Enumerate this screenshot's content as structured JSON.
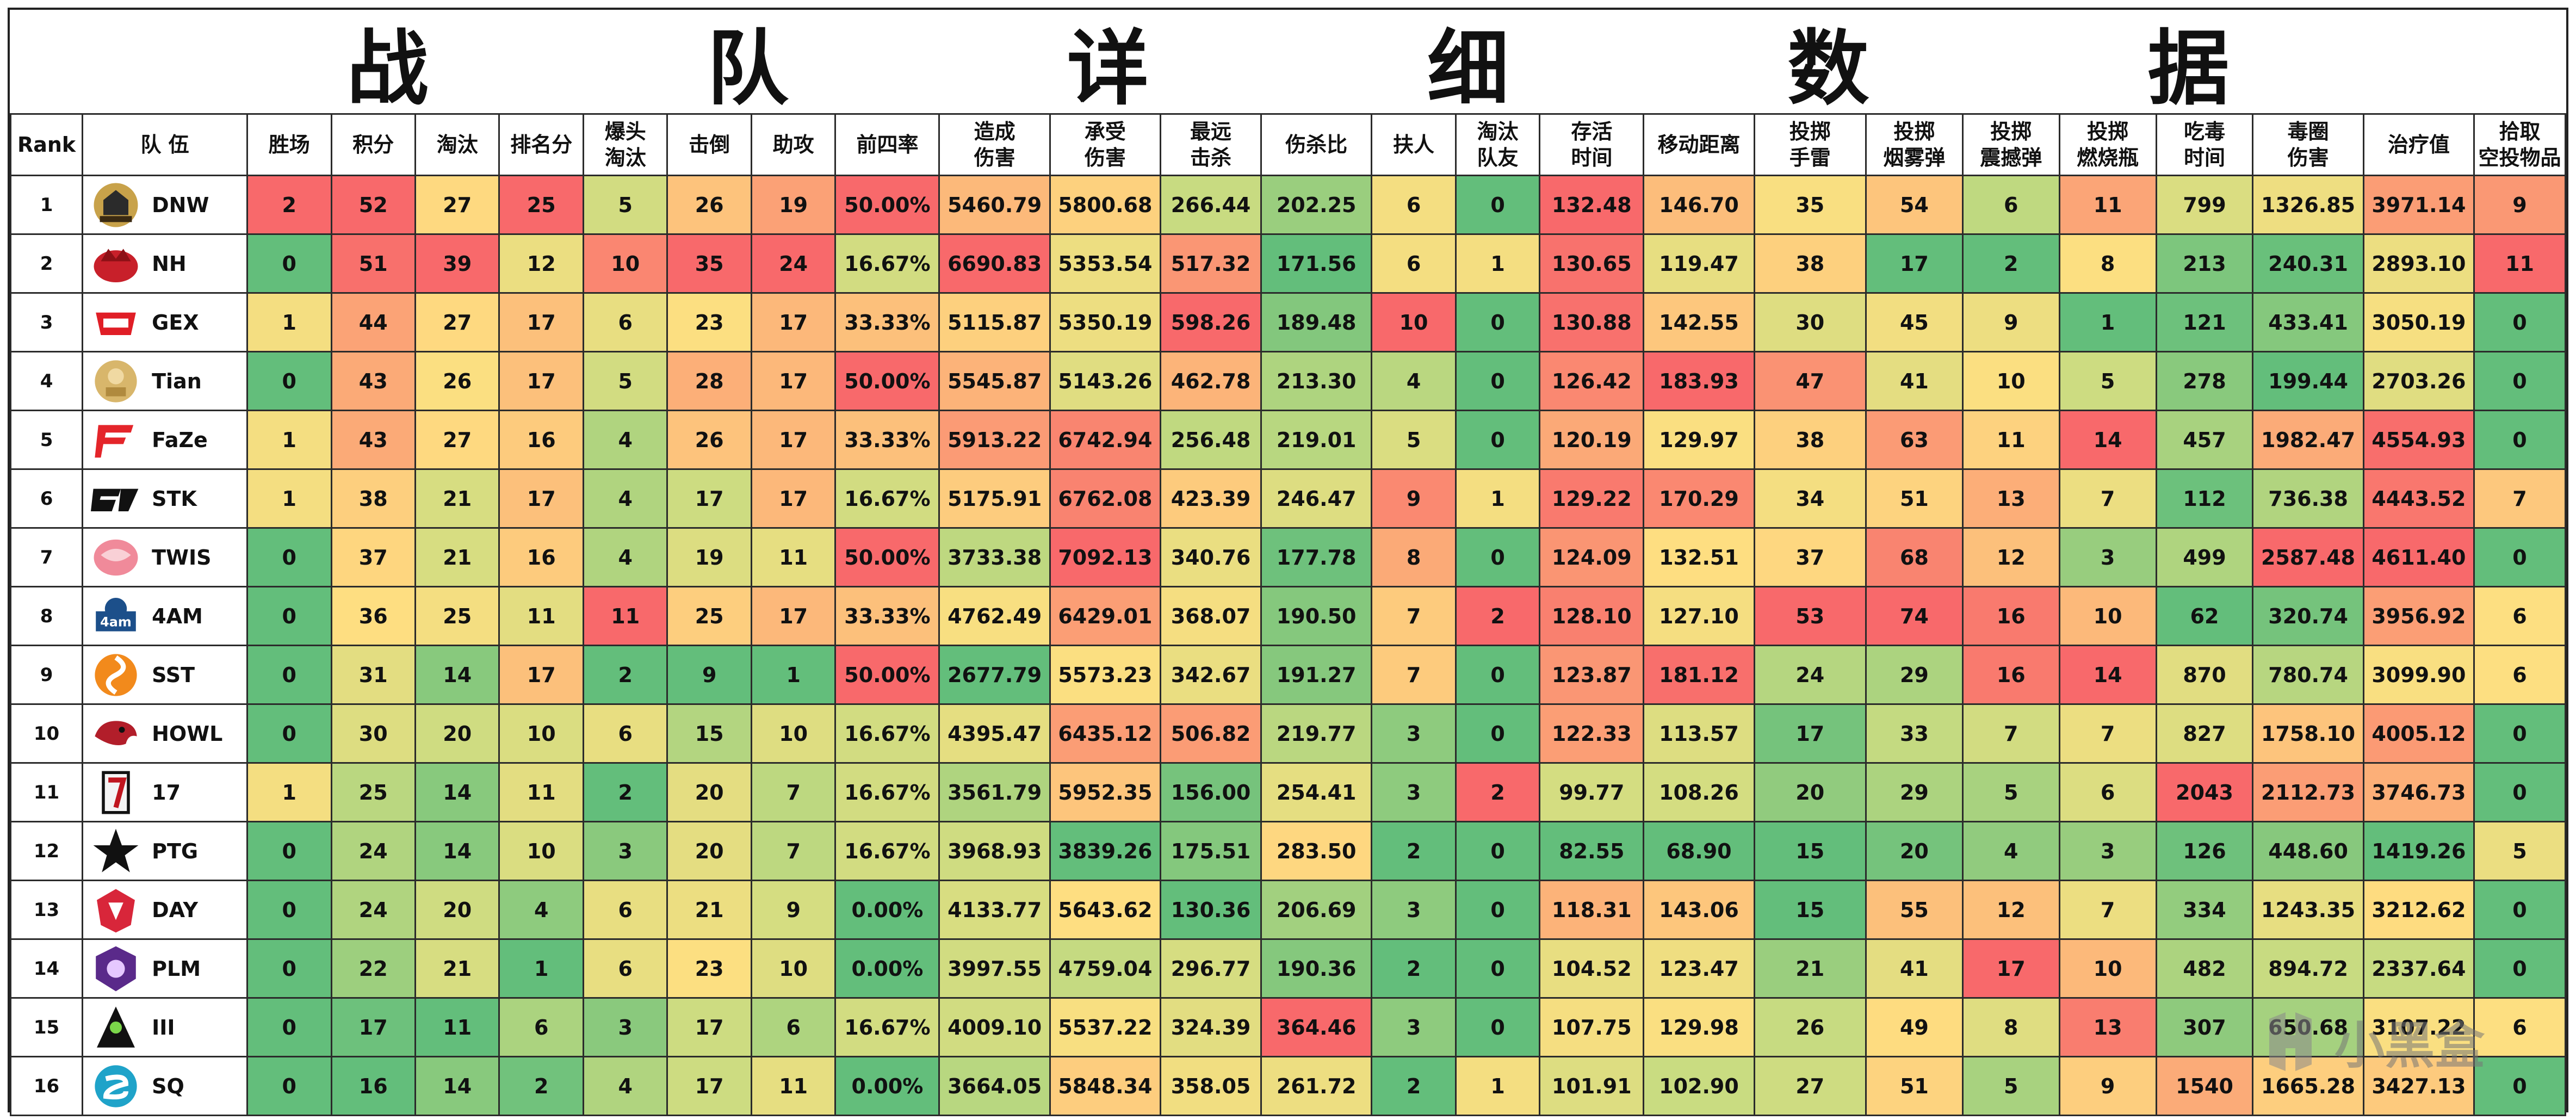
{
  "title": "战 队 详 细 数 据",
  "columns": [
    "Rank",
    "队 伍",
    "胜场",
    "积分",
    "淘汰",
    "排名分",
    "爆头\n淘汰",
    "击倒",
    "助攻",
    "前四率",
    "造成\n伤害",
    "承受\n伤害",
    "最远\n击杀",
    "伤杀比",
    "扶人",
    "淘汰\n队友",
    "存活\n时间",
    "移动距离",
    "投掷\n手雷",
    "投掷\n烟雾弹",
    "投掷\n震撼弹",
    "投掷\n燃烧瓶",
    "吃毒\n时间",
    "毒圈\n伤害",
    "治疗值",
    "拾取\n空投物品"
  ],
  "rows": [
    {
      "rank": "1",
      "team": "DNW",
      "logo": "danawa-logo",
      "values": [
        "2",
        "52",
        "27",
        "25",
        "5",
        "26",
        "19",
        "50.00%",
        "5460.79",
        "5800.68",
        "266.44",
        "202.25",
        "6",
        "0",
        "132.48",
        "146.70",
        "35",
        "54",
        "6",
        "11",
        "799",
        "1326.85",
        "3971.14",
        "9"
      ]
    },
    {
      "rank": "2",
      "team": "NH",
      "logo": "nh-logo",
      "values": [
        "0",
        "51",
        "39",
        "12",
        "10",
        "35",
        "24",
        "16.67%",
        "6690.83",
        "5353.54",
        "517.32",
        "171.56",
        "6",
        "1",
        "130.65",
        "119.47",
        "38",
        "17",
        "2",
        "8",
        "213",
        "240.31",
        "2893.10",
        "11"
      ]
    },
    {
      "rank": "3",
      "team": "GEX",
      "logo": "gex-logo",
      "values": [
        "1",
        "44",
        "27",
        "17",
        "6",
        "23",
        "17",
        "33.33%",
        "5115.87",
        "5350.19",
        "598.26",
        "189.48",
        "10",
        "0",
        "130.88",
        "142.55",
        "30",
        "45",
        "9",
        "1",
        "121",
        "433.41",
        "3050.19",
        "0"
      ]
    },
    {
      "rank": "4",
      "team": "Tian",
      "logo": "tian-logo",
      "values": [
        "0",
        "43",
        "26",
        "17",
        "5",
        "28",
        "17",
        "50.00%",
        "5545.87",
        "5143.26",
        "462.78",
        "213.30",
        "4",
        "0",
        "126.42",
        "183.93",
        "47",
        "41",
        "10",
        "5",
        "278",
        "199.44",
        "2703.26",
        "0"
      ]
    },
    {
      "rank": "5",
      "team": "FaZe",
      "logo": "faze-logo",
      "values": [
        "1",
        "43",
        "27",
        "16",
        "4",
        "26",
        "17",
        "33.33%",
        "5913.22",
        "6742.94",
        "256.48",
        "219.01",
        "5",
        "0",
        "120.19",
        "129.97",
        "38",
        "63",
        "11",
        "14",
        "457",
        "1982.47",
        "4554.93",
        "0"
      ]
    },
    {
      "rank": "6",
      "team": "STK",
      "logo": "stk-logo",
      "values": [
        "1",
        "38",
        "21",
        "17",
        "4",
        "17",
        "17",
        "16.67%",
        "5175.91",
        "6762.08",
        "423.39",
        "246.47",
        "9",
        "1",
        "129.22",
        "170.29",
        "34",
        "51",
        "13",
        "7",
        "112",
        "736.38",
        "4443.52",
        "7"
      ]
    },
    {
      "rank": "7",
      "team": "TWIS",
      "logo": "twis-logo",
      "values": [
        "0",
        "37",
        "21",
        "16",
        "4",
        "19",
        "11",
        "50.00%",
        "3733.38",
        "7092.13",
        "340.76",
        "177.78",
        "8",
        "0",
        "124.09",
        "132.51",
        "37",
        "68",
        "12",
        "3",
        "499",
        "2587.48",
        "4611.40",
        "0"
      ]
    },
    {
      "rank": "8",
      "team": "4AM",
      "logo": "4am-logo",
      "values": [
        "0",
        "36",
        "25",
        "11",
        "11",
        "25",
        "17",
        "33.33%",
        "4762.49",
        "6429.01",
        "368.07",
        "190.50",
        "7",
        "2",
        "128.10",
        "127.10",
        "53",
        "74",
        "16",
        "10",
        "62",
        "320.74",
        "3956.92",
        "6"
      ]
    },
    {
      "rank": "9",
      "team": "SST",
      "logo": "sst-logo",
      "values": [
        "0",
        "31",
        "14",
        "17",
        "2",
        "9",
        "1",
        "50.00%",
        "2677.79",
        "5573.23",
        "342.67",
        "191.27",
        "7",
        "0",
        "123.87",
        "181.12",
        "24",
        "29",
        "16",
        "14",
        "870",
        "780.74",
        "3099.90",
        "6"
      ]
    },
    {
      "rank": "10",
      "team": "HOWL",
      "logo": "howl-logo",
      "values": [
        "0",
        "30",
        "20",
        "10",
        "6",
        "15",
        "10",
        "16.67%",
        "4395.47",
        "6435.12",
        "506.82",
        "219.77",
        "3",
        "0",
        "122.33",
        "113.57",
        "17",
        "33",
        "7",
        "7",
        "827",
        "1758.10",
        "4005.12",
        "0"
      ]
    },
    {
      "rank": "11",
      "team": "17",
      "logo": "17-logo",
      "values": [
        "1",
        "25",
        "14",
        "11",
        "2",
        "20",
        "7",
        "16.67%",
        "3561.79",
        "5952.35",
        "156.00",
        "254.41",
        "3",
        "2",
        "99.77",
        "108.26",
        "20",
        "29",
        "5",
        "6",
        "2043",
        "2112.73",
        "3746.73",
        "0"
      ]
    },
    {
      "rank": "12",
      "team": "PTG",
      "logo": "ptg-logo",
      "values": [
        "0",
        "24",
        "14",
        "10",
        "3",
        "20",
        "7",
        "16.67%",
        "3968.93",
        "3839.26",
        "175.51",
        "283.50",
        "2",
        "0",
        "82.55",
        "68.90",
        "15",
        "20",
        "4",
        "3",
        "126",
        "448.60",
        "1419.26",
        "5"
      ]
    },
    {
      "rank": "13",
      "team": "DAY",
      "logo": "day-logo",
      "values": [
        "0",
        "24",
        "20",
        "4",
        "6",
        "21",
        "9",
        "0.00%",
        "4133.77",
        "5643.62",
        "130.36",
        "206.69",
        "3",
        "0",
        "118.31",
        "143.06",
        "15",
        "55",
        "12",
        "7",
        "334",
        "1243.35",
        "3212.62",
        "0"
      ]
    },
    {
      "rank": "14",
      "team": "PLM",
      "logo": "plm-logo",
      "values": [
        "0",
        "22",
        "21",
        "1",
        "6",
        "23",
        "10",
        "0.00%",
        "3997.55",
        "4759.04",
        "296.77",
        "190.36",
        "2",
        "0",
        "104.52",
        "123.47",
        "21",
        "41",
        "17",
        "10",
        "482",
        "894.72",
        "2337.64",
        "0"
      ]
    },
    {
      "rank": "15",
      "team": "III",
      "logo": "iii-logo",
      "values": [
        "0",
        "17",
        "11",
        "6",
        "3",
        "17",
        "6",
        "16.67%",
        "4009.10",
        "5537.22",
        "324.39",
        "364.46",
        "3",
        "0",
        "107.75",
        "129.98",
        "26",
        "49",
        "8",
        "13",
        "307",
        "650.68",
        "3107.22",
        "6"
      ]
    },
    {
      "rank": "16",
      "team": "SQ",
      "logo": "sq-logo",
      "values": [
        "0",
        "16",
        "14",
        "2",
        "4",
        "17",
        "11",
        "0.00%",
        "3664.05",
        "5848.34",
        "358.05",
        "261.72",
        "2",
        "1",
        "101.91",
        "102.90",
        "27",
        "51",
        "5",
        "9",
        "1540",
        "1665.28",
        "3427.13",
        "0"
      ]
    }
  ],
  "colors": {
    "red": "#f8696b",
    "orange": "#fba276",
    "yellow": "#fedf81",
    "lightgreen": "#cbdc81",
    "green": "#63be7b"
  },
  "watermark": {
    "text": "小黑盒",
    "icon": "heybox-logo-icon"
  }
}
